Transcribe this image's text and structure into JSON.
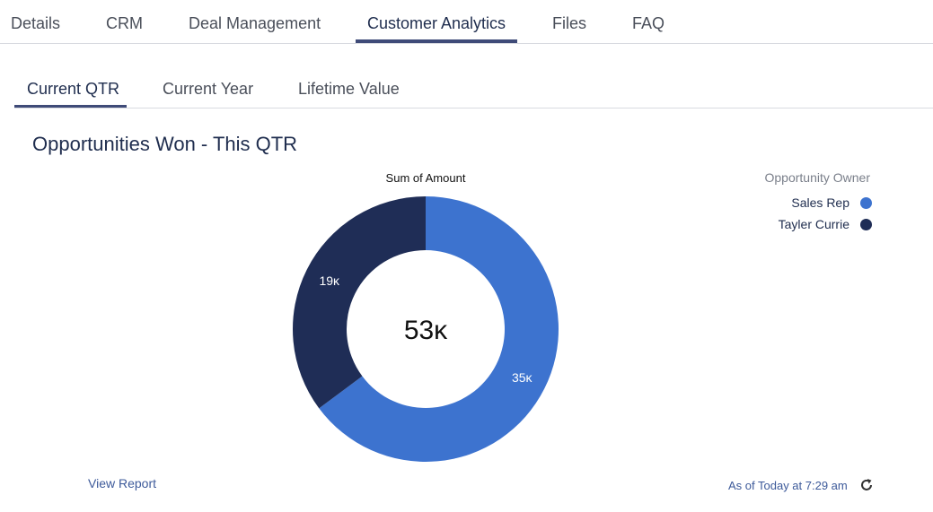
{
  "main_tabs": [
    {
      "label": "Details"
    },
    {
      "label": "CRM"
    },
    {
      "label": "Deal Management"
    },
    {
      "label": "Customer Analytics"
    },
    {
      "label": "Files"
    },
    {
      "label": "FAQ"
    }
  ],
  "sub_tabs": [
    {
      "label": "Current QTR"
    },
    {
      "label": "Current Year"
    },
    {
      "label": "Lifetime Value"
    }
  ],
  "card": {
    "title": "Opportunities Won - This QTR",
    "view_report": "View Report",
    "timestamp": "As of Today at 7:29 am"
  },
  "legend": {
    "title": "Opportunity Owner",
    "items": [
      {
        "label": "Sales Rep",
        "color": "#3d73cf"
      },
      {
        "label": "Tayler Currie",
        "color": "#1f2d56"
      }
    ]
  },
  "chart_data": {
    "type": "pie",
    "title": "Sum of Amount",
    "center_label": "53κ",
    "series": [
      {
        "name": "Sales Rep",
        "value": 35,
        "label": "35κ",
        "color": "#3d73cf"
      },
      {
        "name": "Tayler Currie",
        "value": 19,
        "label": "19κ",
        "color": "#1f2d56"
      }
    ],
    "donut": true
  }
}
